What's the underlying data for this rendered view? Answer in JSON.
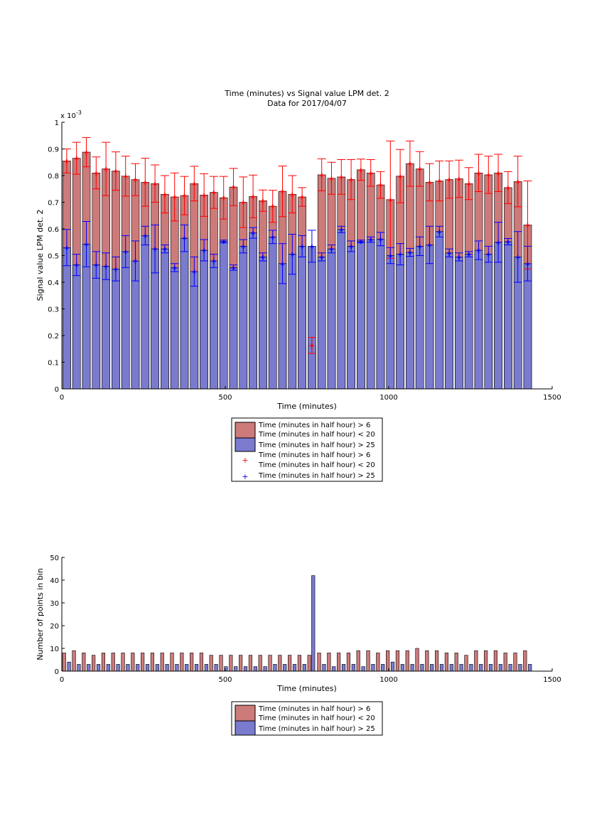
{
  "colors": {
    "red_fill": "#cc7a7a",
    "blue_fill": "#7a7ace",
    "red_err": "#ff0000",
    "blue_err": "#0000ff",
    "bar_edge": "#000000"
  },
  "chart_data": [
    {
      "type": "bar",
      "title": "Time (minutes) vs Signal value LPM det. 2",
      "subtitle": "Data for 2017/04/07",
      "xlabel": "Time (minutes)",
      "ylabel": "Signal value LPM det. 2",
      "exponent_label": "x 10",
      "exponent_sup": "-3",
      "xlim": [
        0,
        1500
      ],
      "ylim": [
        0,
        1
      ],
      "xticks": [
        0,
        500,
        1000,
        1500
      ],
      "yticks": [
        0,
        0.1,
        0.2,
        0.3,
        0.4,
        0.5,
        0.6,
        0.7,
        0.8,
        0.9,
        1
      ],
      "bar_width_minutes": 24,
      "grid": false,
      "legend_position": "below",
      "legend": [
        {
          "kind": "box",
          "color": "red",
          "lines": [
            "Time (minutes in half hour) > 6",
            "Time (minutes in half hour) < 20"
          ]
        },
        {
          "kind": "box",
          "color": "blue",
          "lines": [
            "Time (minutes in half hour) > 25"
          ]
        },
        {
          "kind": "marker",
          "color": "red",
          "lines": [
            "Time (minutes in half hour) > 6",
            "Time (minutes in half hour) < 20"
          ]
        },
        {
          "kind": "marker",
          "color": "blue",
          "lines": [
            "Time (minutes in half hour) > 25"
          ]
        }
      ],
      "series": [
        {
          "color": "red",
          "x": [
            15,
            45,
            75,
            105,
            135,
            165,
            195,
            225,
            255,
            285,
            315,
            345,
            375,
            405,
            435,
            465,
            495,
            525,
            555,
            585,
            615,
            645,
            675,
            705,
            735,
            765,
            795,
            825,
            855,
            885,
            915,
            945,
            975,
            1005,
            1035,
            1065,
            1095,
            1125,
            1155,
            1185,
            1215,
            1245,
            1275,
            1305,
            1335,
            1365,
            1395,
            1425
          ],
          "values": [
            0.855,
            0.865,
            0.888,
            0.81,
            0.825,
            0.817,
            0.798,
            0.785,
            0.775,
            0.77,
            0.73,
            0.72,
            0.725,
            0.77,
            0.727,
            0.737,
            0.717,
            0.757,
            0.7,
            0.722,
            0.706,
            0.685,
            0.741,
            0.73,
            0.72,
            0.163,
            0.803,
            0.79,
            0.795,
            0.785,
            0.822,
            0.81,
            0.765,
            0.71,
            0.798,
            0.845,
            0.825,
            0.775,
            0.78,
            0.785,
            0.788,
            0.77,
            0.81,
            0.803,
            0.81,
            0.755,
            0.778,
            0.615
          ],
          "err": [
            0.045,
            0.06,
            0.055,
            0.06,
            0.1,
            0.072,
            0.075,
            0.06,
            0.09,
            0.07,
            0.07,
            0.09,
            0.072,
            0.065,
            0.08,
            0.06,
            0.08,
            0.07,
            0.095,
            0.08,
            0.04,
            0.06,
            0.095,
            0.07,
            0.035,
            0.03,
            0.06,
            0.06,
            0.065,
            0.075,
            0.04,
            0.05,
            0.05,
            0.22,
            0.1,
            0.085,
            0.065,
            0.07,
            0.075,
            0.07,
            0.07,
            0.06,
            0.07,
            0.07,
            0.07,
            0.06,
            0.095,
            0.165
          ]
        },
        {
          "color": "blue",
          "x": [
            15,
            45,
            75,
            105,
            135,
            165,
            195,
            225,
            255,
            285,
            315,
            345,
            375,
            405,
            435,
            465,
            495,
            525,
            555,
            585,
            615,
            645,
            675,
            705,
            735,
            765,
            795,
            825,
            855,
            885,
            915,
            945,
            975,
            1005,
            1035,
            1065,
            1095,
            1125,
            1155,
            1185,
            1215,
            1245,
            1275,
            1305,
            1335,
            1365,
            1395,
            1425
          ],
          "values": [
            0.53,
            0.465,
            0.543,
            0.465,
            0.46,
            0.45,
            0.515,
            0.48,
            0.575,
            0.525,
            0.525,
            0.455,
            0.565,
            0.44,
            0.52,
            0.48,
            0.553,
            0.455,
            0.535,
            0.585,
            0.495,
            0.57,
            0.47,
            0.505,
            0.535,
            0.535,
            0.495,
            0.525,
            0.598,
            0.535,
            0.553,
            0.56,
            0.562,
            0.5,
            0.505,
            0.512,
            0.535,
            0.54,
            0.59,
            0.51,
            0.495,
            0.505,
            0.52,
            0.505,
            0.55,
            0.552,
            0.495,
            0.47
          ],
          "err": [
            0.068,
            0.04,
            0.085,
            0.05,
            0.05,
            0.045,
            0.06,
            0.075,
            0.035,
            0.09,
            0.015,
            0.015,
            0.05,
            0.055,
            0.04,
            0.025,
            0.005,
            0.01,
            0.025,
            0.02,
            0.015,
            0.025,
            0.075,
            0.075,
            0.04,
            0.06,
            0.015,
            0.015,
            0.012,
            0.02,
            0.005,
            0.01,
            0.025,
            0.03,
            0.04,
            0.015,
            0.035,
            0.07,
            0.02,
            0.015,
            0.015,
            0.01,
            0.035,
            0.03,
            0.075,
            0.012,
            0.095,
            0.065
          ]
        }
      ]
    },
    {
      "type": "bar",
      "xlabel": "Time (minutes)",
      "ylabel": "Number of points in bin",
      "xlim": [
        0,
        1500
      ],
      "ylim": [
        0,
        50
      ],
      "xticks": [
        0,
        500,
        1000,
        1500
      ],
      "yticks": [
        0,
        10,
        20,
        30,
        40,
        50
      ],
      "bar_width_minutes": 10,
      "grid": false,
      "legend_position": "below",
      "legend": [
        {
          "kind": "box",
          "color": "red",
          "lines": [
            "Time (minutes in half hour) > 6",
            "Time (minutes in half hour) < 20"
          ]
        },
        {
          "kind": "box",
          "color": "blue",
          "lines": [
            "Time (minutes in half hour) > 25"
          ]
        }
      ],
      "series": [
        {
          "color": "red",
          "x": [
            7,
            37,
            67,
            97,
            127,
            157,
            187,
            217,
            247,
            277,
            307,
            337,
            367,
            397,
            427,
            457,
            487,
            517,
            547,
            577,
            607,
            637,
            667,
            697,
            727,
            757,
            787,
            817,
            847,
            877,
            907,
            937,
            967,
            997,
            1027,
            1057,
            1087,
            1117,
            1147,
            1177,
            1207,
            1237,
            1267,
            1297,
            1327,
            1357,
            1387,
            1417
          ],
          "values": [
            8,
            9,
            8,
            7,
            8,
            8,
            8,
            8,
            8,
            8,
            8,
            8,
            8,
            8,
            8,
            7,
            7,
            7,
            7,
            7,
            7,
            7,
            7,
            7,
            7,
            7,
            8,
            8,
            8,
            8,
            9,
            9,
            8,
            9,
            9,
            9,
            10,
            9,
            9,
            8,
            8,
            7,
            9,
            9,
            9,
            8,
            8,
            9
          ]
        },
        {
          "color": "blue",
          "x": [
            22,
            52,
            82,
            112,
            142,
            172,
            202,
            232,
            262,
            292,
            322,
            352,
            382,
            412,
            442,
            472,
            502,
            532,
            562,
            592,
            622,
            652,
            682,
            712,
            742,
            769,
            802,
            832,
            862,
            892,
            922,
            952,
            982,
            1012,
            1042,
            1072,
            1102,
            1132,
            1162,
            1192,
            1222,
            1252,
            1282,
            1312,
            1342,
            1372,
            1402,
            1432
          ],
          "values": [
            4,
            3,
            3,
            3,
            3,
            3,
            3,
            3,
            3,
            3,
            3,
            3,
            3,
            3,
            3,
            3,
            2,
            2,
            2,
            2,
            2,
            3,
            3,
            3,
            3,
            42,
            3,
            2,
            3,
            3,
            2,
            3,
            3,
            4,
            3,
            3,
            3,
            3,
            3,
            3,
            3,
            3,
            3,
            3,
            3,
            3,
            3,
            3
          ]
        }
      ]
    }
  ]
}
